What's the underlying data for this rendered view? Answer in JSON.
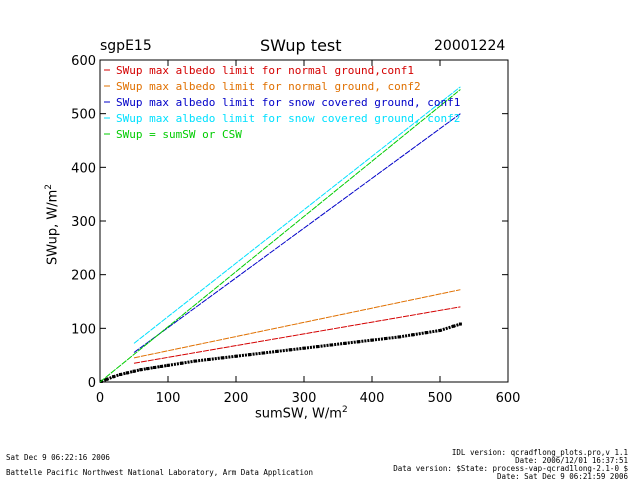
{
  "header": {
    "station": "sgpE15",
    "title": "SWup test",
    "date": "20001224"
  },
  "footer": {
    "left_line1": "Sat Dec  9 06:22:16 2006",
    "left_line2": "Battelle Pacific Northwest National Laboratory, Arm Data Application",
    "right_line1": "IDL version: qcradflong_plots.pro,v 1.1",
    "right_line2": "Date: 2006/12/01 16:37:51",
    "right_line3": "Data version: $State: process-vap-qcrad1long-2.1-0 $",
    "right_line4": "Date: Sat Dec  9 06:21:59 2006"
  },
  "chart_data": {
    "type": "line",
    "xlabel": "sumSW, W/m",
    "xlabel_sup": "2",
    "ylabel": "SWup, W/m",
    "ylabel_sup": "2",
    "xlim": [
      0,
      600
    ],
    "ylim": [
      0,
      600
    ],
    "xticks": [
      0,
      100,
      200,
      300,
      400,
      500,
      600
    ],
    "yticks": [
      0,
      100,
      200,
      300,
      400,
      500,
      600
    ],
    "grid": false,
    "legend_position": "top-left",
    "series": [
      {
        "name": "SWup max albedo limit for normal ground,conf1",
        "color": "#d40000",
        "x": [
          50,
          530
        ],
        "y": [
          35,
          140
        ]
      },
      {
        "name": "SWup max albedo limit for normal ground, conf2",
        "color": "#e07000",
        "x": [
          50,
          530
        ],
        "y": [
          45,
          172
        ]
      },
      {
        "name": "SWup max albedo limit for snow covered ground, conf1",
        "color": "#0000c8",
        "x": [
          50,
          530
        ],
        "y": [
          55,
          500
        ]
      },
      {
        "name": "SWup max albedo limit for snow covered ground, conf2",
        "color": "#00e0ff",
        "x": [
          50,
          530
        ],
        "y": [
          72,
          550
        ]
      },
      {
        "name": "SWup = sumSW or CSW",
        "color": "#00cc00",
        "x": [
          0,
          530
        ],
        "y": [
          0,
          545
        ]
      }
    ],
    "observations": {
      "color": "#000000",
      "x": [
        2,
        10,
        20,
        30,
        40,
        50,
        60,
        70,
        80,
        90,
        100,
        120,
        140,
        160,
        180,
        200,
        220,
        240,
        260,
        280,
        300,
        320,
        340,
        360,
        380,
        400,
        420,
        440,
        460,
        480,
        500,
        520,
        530
      ],
      "y": [
        1,
        5,
        10,
        14,
        17,
        20,
        23,
        25,
        27,
        29,
        31,
        35,
        39,
        42,
        45,
        48,
        51,
        54,
        57,
        60,
        63,
        66,
        69,
        72,
        75,
        78,
        81,
        84,
        88,
        92,
        96,
        104,
        108
      ]
    }
  }
}
